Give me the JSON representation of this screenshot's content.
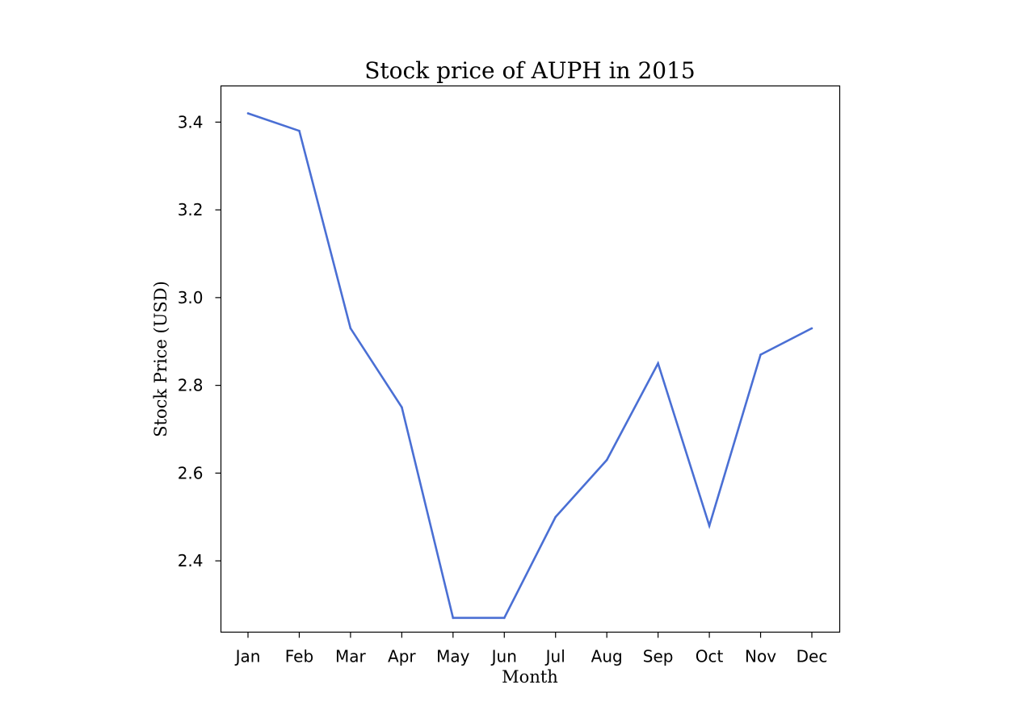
{
  "chart_data": {
    "type": "line",
    "title": "Stock price of AUPH in 2015",
    "xlabel": "Month",
    "ylabel": "Stock Price (USD)",
    "categories": [
      "Jan",
      "Feb",
      "Mar",
      "Apr",
      "May",
      "Jun",
      "Jul",
      "Aug",
      "Sep",
      "Oct",
      "Nov",
      "Dec"
    ],
    "series": [
      {
        "values": [
          3.42,
          3.38,
          2.93,
          2.75,
          2.27,
          2.27,
          2.5,
          2.63,
          2.85,
          2.48,
          2.87,
          2.93
        ],
        "color": "#4a6fd4"
      }
    ],
    "yticks": [
      "2.4",
      "2.6",
      "2.8",
      "3.0",
      "3.2",
      "3.4"
    ],
    "ylim": [
      2.2375,
      3.4825
    ],
    "grid": false,
    "legend": "none"
  }
}
